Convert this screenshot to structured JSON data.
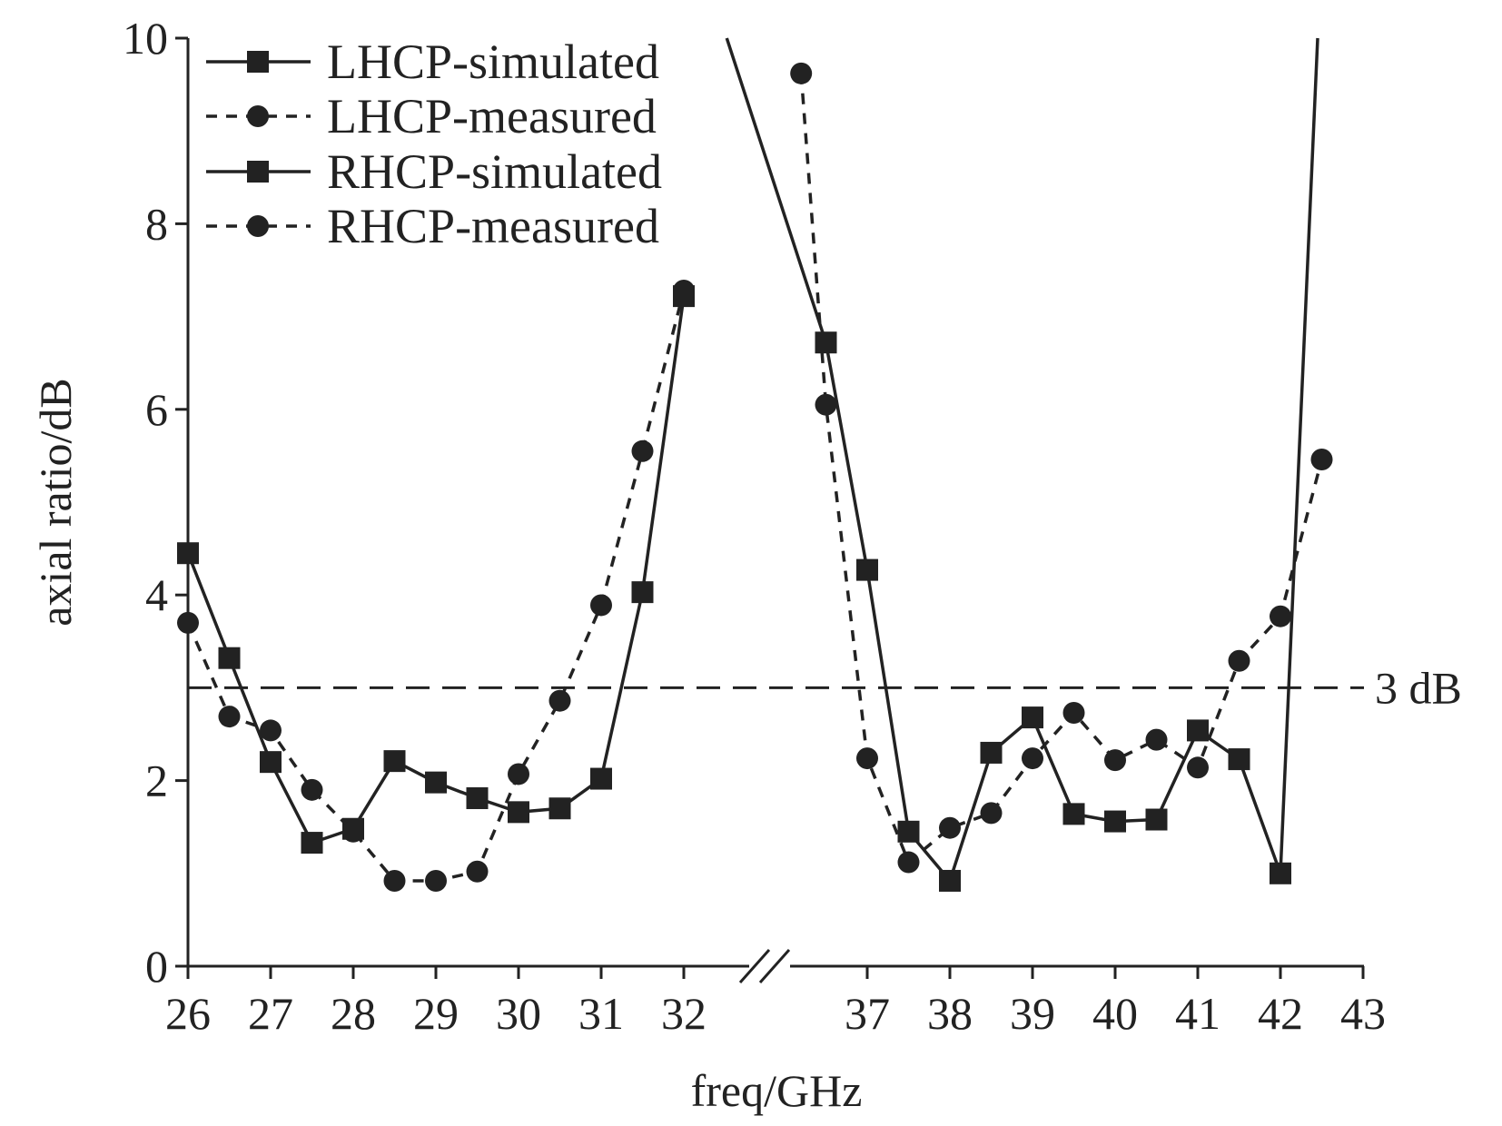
{
  "chart_data": {
    "type": "line",
    "xlabel": "freq/GHz",
    "ylabel": "axial ratio/dB",
    "ylim": [
      0,
      10
    ],
    "yticks": [
      "0",
      "2",
      "4",
      "6",
      "8",
      "10"
    ],
    "xticks": [
      "26",
      "27",
      "28",
      "29",
      "30",
      "31",
      "32",
      "37",
      "38",
      "39",
      "40",
      "41",
      "42",
      "43"
    ],
    "x_axis_break": [
      32.8,
      36.2
    ],
    "grid": false,
    "legend_position": "top-left",
    "reference_line": {
      "y": 3,
      "label": "3 dB",
      "style": "dashed"
    },
    "color": "#222222",
    "series": [
      {
        "name": "LHCP-simulated",
        "style": "solid",
        "marker": "square",
        "x": [
          26,
          26.5,
          27,
          27.5,
          28,
          28.5,
          29,
          29.5,
          30,
          30.5,
          31,
          31.5,
          32
        ],
        "y": [
          4.45,
          3.32,
          2.2,
          1.33,
          1.48,
          2.21,
          1.98,
          1.81,
          1.66,
          1.7,
          2.02,
          4.03,
          7.22
        ]
      },
      {
        "name": "LHCP-measured",
        "style": "dashed",
        "marker": "circle",
        "x": [
          26,
          26.5,
          27,
          27.5,
          28,
          28.5,
          29,
          29.5,
          30,
          30.5,
          31,
          31.5,
          32
        ],
        "y": [
          3.7,
          2.69,
          2.54,
          1.9,
          1.45,
          0.92,
          0.92,
          1.02,
          2.07,
          2.86,
          3.89,
          5.55,
          7.28
        ]
      },
      {
        "name": "RHCP-simulated",
        "style": "solid",
        "marker": "square",
        "x": [
          36.5,
          37,
          37.5,
          38,
          38.5,
          39,
          39.5,
          40,
          40.5,
          41,
          41.5,
          42
        ],
        "y": [
          6.72,
          4.27,
          1.45,
          0.92,
          2.3,
          2.68,
          1.64,
          1.56,
          1.58,
          2.54,
          2.23,
          1.0
        ],
        "unmarked_extension": {
          "x_top_left": 35.3,
          "x_top_right": 42.45
        }
      },
      {
        "name": "RHCP-measured",
        "style": "dashed",
        "marker": "circle",
        "x": [
          36.2,
          36.5,
          37,
          37.5,
          38,
          38.5,
          39,
          39.5,
          40,
          40.5,
          41,
          41.5,
          42,
          42.5
        ],
        "y": [
          9.62,
          6.05,
          2.24,
          1.12,
          1.49,
          1.65,
          2.24,
          2.73,
          2.22,
          2.44,
          2.14,
          3.29,
          3.77,
          5.46
        ]
      }
    ]
  }
}
